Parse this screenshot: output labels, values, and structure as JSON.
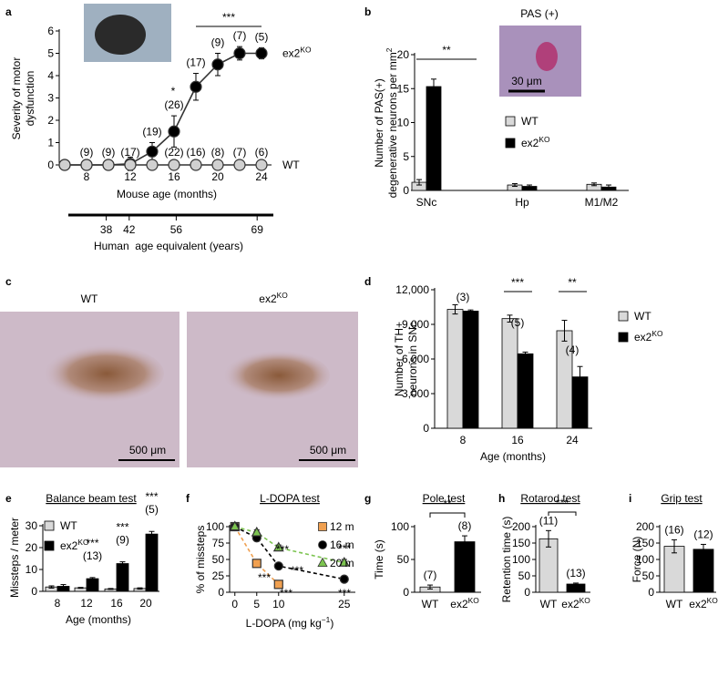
{
  "chart_data": [
    {
      "panel": "a",
      "type": "line",
      "ylabel": [
        "Severity of motor",
        "dysfunction"
      ],
      "xlabel": "Mouse age (months)",
      "x": [
        6,
        8,
        10,
        12,
        14,
        16,
        18,
        20,
        22,
        24
      ],
      "xlim": [
        5.5,
        24.5
      ],
      "xticks": [
        8,
        12,
        16,
        20,
        24
      ],
      "ylim": [
        0,
        6
      ],
      "yticks": [
        0,
        1,
        2,
        3,
        4,
        5,
        6
      ],
      "series": [
        {
          "name": "ex2",
          "name_sup": "KO",
          "color": "#000000",
          "values": [
            0,
            0,
            0,
            0.05,
            0.6,
            1.5,
            3.5,
            4.5,
            5,
            5
          ],
          "errors": [
            0,
            0,
            0,
            0.3,
            0.4,
            0.7,
            0.6,
            0.5,
            0.3,
            0.25
          ],
          "n_labels": [
            null,
            null,
            null,
            null,
            "(19)",
            "(26)",
            "(17)",
            "(9)",
            "(7)",
            "(5)"
          ]
        },
        {
          "name": "WT",
          "color": "#d0d0d0",
          "values": [
            0,
            0,
            0,
            0,
            0,
            0,
            0,
            0,
            0,
            0
          ],
          "n_labels": [
            null,
            "(9)",
            "(9)",
            "(17)",
            null,
            "(22)",
            "(16)",
            "(8)",
            "(7)",
            "(6)"
          ]
        }
      ],
      "annotations": [
        "***",
        "*"
      ],
      "x2label": "Human  age equivalent (years)",
      "x2ticks": [
        {
          "value": 38,
          "at_month": 9.8
        },
        {
          "value": 42,
          "at_month": 11.9
        },
        {
          "value": 56,
          "at_month": 16.2
        },
        {
          "value": 69,
          "at_month": 23.6
        }
      ]
    },
    {
      "panel": "b",
      "type": "bar",
      "ylabel": [
        "Number of PAS(+)",
        "degenerative neurons per mm"
      ],
      "ylabel_sup": "2",
      "categories": [
        "SNc",
        "Hp",
        "M1/M2"
      ],
      "ylim": [
        0,
        20
      ],
      "yticks": [
        0,
        5,
        10,
        15,
        20
      ],
      "series": [
        {
          "name": "WT",
          "color": "#d9d9d9",
          "values": [
            1.2,
            0.8,
            0.9
          ],
          "errors": [
            0.4,
            0.2,
            0.2
          ]
        },
        {
          "name": "ex2",
          "name_sup": "KO",
          "color": "#000000",
          "values": [
            15.3,
            0.6,
            0.5
          ],
          "errors": [
            1.1,
            0.2,
            0.3
          ]
        }
      ],
      "annotations": [
        "**"
      ],
      "inset_title": "PAS (+)",
      "inset_scale_label": "30 μm"
    },
    {
      "panel": "c",
      "type": "image",
      "images": [
        {
          "label": "WT",
          "scale_label": "500 μm"
        },
        {
          "label": "ex2",
          "label_sup": "KO",
          "scale_label": "500 μm"
        }
      ]
    },
    {
      "panel": "d",
      "type": "bar",
      "ylabel": [
        "Number of TH+",
        "neurons in SNc"
      ],
      "xlabel": "Age (months)",
      "categories": [
        "8",
        "16",
        "24"
      ],
      "ylim": [
        0,
        12000
      ],
      "yticks": [
        0,
        {
          "value": 3000,
          "label": "3,000"
        },
        {
          "value": 6000,
          "label": "6,000"
        },
        {
          "value": 9000,
          "label": "9,000"
        },
        {
          "value": 12000,
          "label": "12,000"
        }
      ],
      "series": [
        {
          "name": "WT",
          "color": "#d9d9d9",
          "values": [
            10300,
            9500,
            8450
          ],
          "errors": [
            400,
            300,
            900
          ]
        },
        {
          "name": "ex2",
          "name_sup": "KO",
          "color": "#000000",
          "values": [
            10150,
            6450,
            4450
          ],
          "errors": [
            100,
            150,
            900
          ]
        }
      ],
      "n_labels": [
        "(3)",
        "(5)",
        "(4)"
      ],
      "annotations": [
        null,
        "***",
        "**"
      ]
    },
    {
      "panel": "e",
      "type": "bar",
      "title": "Balance beam test",
      "ylabel": [
        "Missteps / meter"
      ],
      "xlabel": "Age (months)",
      "categories": [
        "8",
        "12",
        "16",
        "20"
      ],
      "ylim": [
        0,
        30
      ],
      "yticks": [
        0,
        10,
        20,
        30
      ],
      "series": [
        {
          "name": "WT",
          "color": "#d9d9d9",
          "values": [
            2,
            1.6,
            1.1,
            1.3
          ],
          "errors": [
            0.5,
            0.2,
            0.2,
            0.3
          ]
        },
        {
          "name": "ex2",
          "name_sup": "KO",
          "color": "#000000",
          "values": [
            2.3,
            5.8,
            12.7,
            26.2
          ],
          "errors": [
            0.8,
            0.5,
            0.8,
            1.2
          ],
          "n_labels": [
            null,
            "(13)",
            "(9)",
            "(5)"
          ]
        }
      ],
      "annotations": [
        null,
        "***",
        "***",
        "***"
      ]
    },
    {
      "panel": "f",
      "type": "line",
      "title": "L-DOPA test",
      "ylabel": [
        "% of missteps"
      ],
      "xlabel": "L-DOPA (mg kg",
      "xlabel_sup": "−1",
      "xlabel_end": ")",
      "xlim": [
        -1.2,
        26.5
      ],
      "xticks": [
        0,
        5,
        10,
        25
      ],
      "ylim": [
        0,
        100
      ],
      "yticks": [
        0,
        25,
        50,
        75,
        100
      ],
      "dashed_lines": true,
      "series": [
        {
          "name": "12 m",
          "color": "#f0a050",
          "marker": "square",
          "x": [
            0,
            5,
            10
          ],
          "values": [
            100,
            44,
            12
          ],
          "errors": [
            2,
            3,
            2
          ]
        },
        {
          "name": "16 m",
          "color": "#000000",
          "marker": "circle",
          "x": [
            0,
            5,
            10,
            25
          ],
          "values": [
            100,
            83,
            40,
            20
          ],
          "errors": [
            2,
            4,
            3,
            2
          ]
        },
        {
          "name": "20 m",
          "color": "#7cc450",
          "marker": "triangle",
          "x": [
            0,
            5,
            10,
            25
          ],
          "values": [
            100,
            91,
            68,
            45
          ],
          "errors": [
            2,
            4,
            4,
            5
          ]
        }
      ],
      "annotations": [
        "***",
        "***",
        "***",
        "***",
        "***",
        "***"
      ]
    },
    {
      "panel": "g",
      "type": "bar",
      "title": "Pole test",
      "ylabel": [
        "Time (s)"
      ],
      "categories": [
        "WT",
        "ex2"
      ],
      "category_sup": [
        null,
        "KO"
      ],
      "ylim": [
        0,
        100
      ],
      "yticks": [
        0,
        50,
        100
      ],
      "values": [
        8,
        77
      ],
      "errors": [
        3,
        9
      ],
      "colors": [
        "#d9d9d9",
        "#000000"
      ],
      "n_labels": [
        "(7)",
        "(8)"
      ],
      "annotations": [
        "**"
      ]
    },
    {
      "panel": "h",
      "type": "bar",
      "title": "Rotarod test",
      "ylabel": [
        "Retention time (s)"
      ],
      "categories": [
        "WT",
        "ex2"
      ],
      "category_sup": [
        null,
        "KO"
      ],
      "ylim": [
        0,
        200
      ],
      "yticks": [
        0,
        50,
        100,
        150,
        200
      ],
      "values": [
        163,
        25
      ],
      "errors": [
        25,
        3
      ],
      "colors": [
        "#d9d9d9",
        "#000000"
      ],
      "n_labels": [
        "(11)",
        "(13)"
      ],
      "annotations": [
        "***"
      ]
    },
    {
      "panel": "i",
      "type": "bar",
      "title": "Grip test",
      "ylabel": [
        "Force (N)"
      ],
      "categories": [
        "WT",
        "ex2"
      ],
      "category_sup": [
        null,
        "KO"
      ],
      "ylim": [
        0,
        200
      ],
      "yticks": [
        0,
        50,
        100,
        150,
        200
      ],
      "values": [
        140,
        131
      ],
      "errors": [
        20,
        15
      ],
      "colors": [
        "#d9d9d9",
        "#000000"
      ],
      "n_labels": [
        "(16)",
        "(12)"
      ]
    }
  ]
}
